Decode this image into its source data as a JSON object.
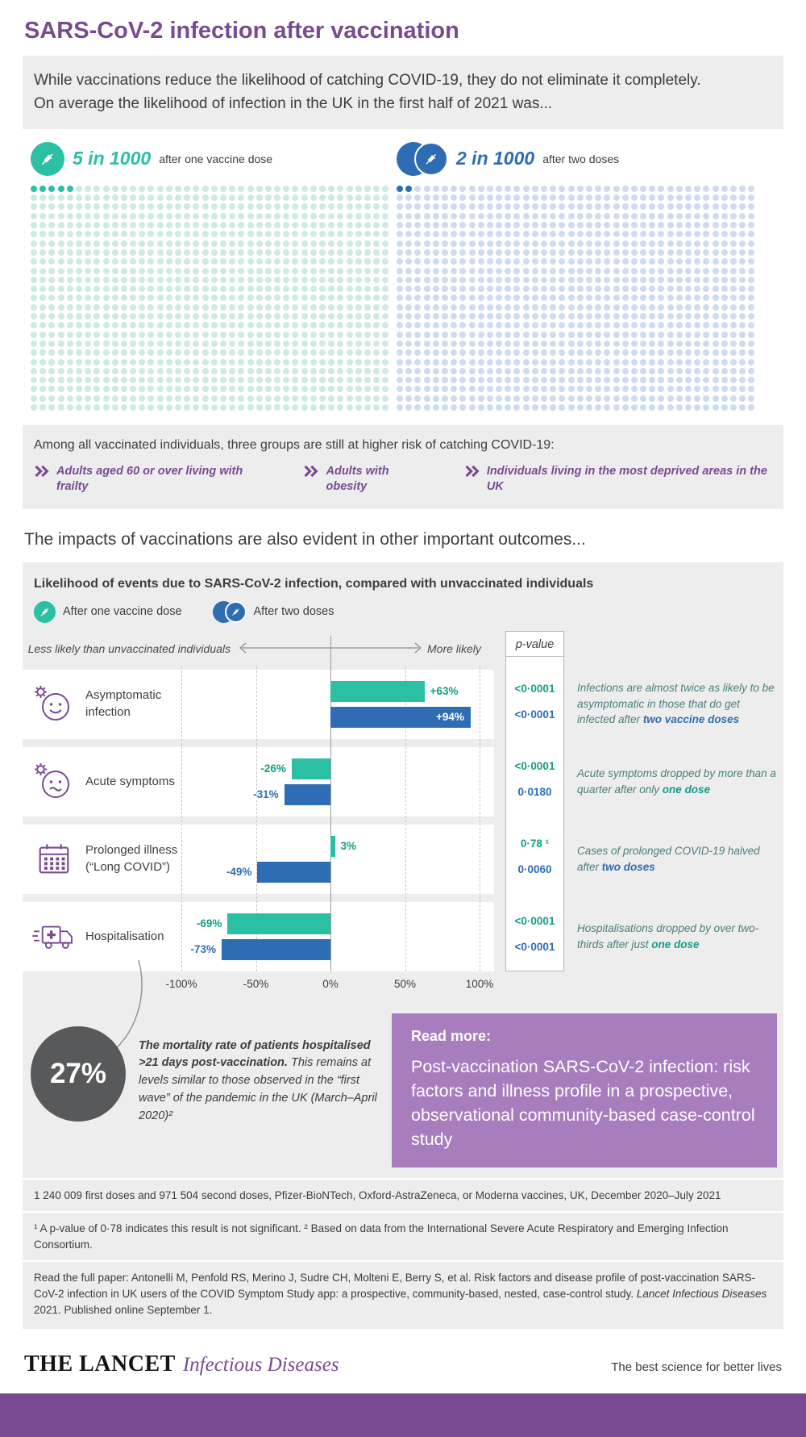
{
  "page": {
    "title": "SARS-CoV-2 infection after vaccination",
    "intro_line1": "While vaccinations reduce the likelihood of catching COVID-19, they do not eliminate it completely.",
    "intro_line2": "On average the likelihood of infection in the UK in the first half of 2021 was..."
  },
  "colors": {
    "purple": "#7a4a91",
    "purple-light": "#a77dbe",
    "teal": "#2bbfa4",
    "teal-dark": "#149e86",
    "teal-light": "#cdeae3",
    "blue": "#2e6db4",
    "blue-light": "#cfdcee",
    "gray-bg": "#ededed",
    "dark": "#3d3d3c",
    "circle-gray": "#58595b"
  },
  "risk_groups": {
    "heading": "Among all vaccinated individuals, three groups are still at higher risk of catching COVID-19:",
    "items": [
      "Adults aged 60 or over living with frailty",
      "Adults with obesity",
      "Individuals living in the most deprived areas in the UK"
    ]
  },
  "impacts_heading": "The impacts of vaccinations are also evident in other important outcomes...",
  "chart_data": [
    {
      "type": "pictogram",
      "unit_total": 1000,
      "series": [
        {
          "name": "after one vaccine dose",
          "value_label": "5 in 1000",
          "highlighted": 5
        },
        {
          "name": "after two doses",
          "value_label": "2 in 1000",
          "highlighted": 2
        }
      ]
    },
    {
      "type": "bar",
      "orientation": "horizontal",
      "title": "Likelihood of events due to SARS-CoV-2 infection, compared with unvaccinated individuals",
      "legend": [
        "After one vaccine dose",
        "After two doses"
      ],
      "less_label": "Less likely than unvaccinated individuals",
      "more_label": "More likely",
      "p_label": "p-value",
      "xlim": [
        -100,
        100
      ],
      "x_ticks": [
        "-100%",
        "-50%",
        "0%",
        "50%",
        "100%"
      ],
      "tick_values": [
        -100,
        -50,
        0,
        50,
        100
      ],
      "rows": [
        {
          "category": "Asymptomatic infection",
          "icon": "smiley-virus-icon",
          "one": {
            "value": 63,
            "label": "+63%",
            "p": "<0·0001",
            "label_inside": false
          },
          "two": {
            "value": 94,
            "label": "+94%",
            "p": "<0·0001",
            "label_inside": true
          },
          "note": {
            "pre": "Infections are almost twice as likely to be asymptomatic in those that do get infected after ",
            "bold": "two vaccine doses",
            "bold_color": "blue"
          }
        },
        {
          "category": "Acute symptoms",
          "icon": "sad-virus-icon",
          "one": {
            "value": -26,
            "label": "-26%",
            "p": "<0·0001",
            "label_inside": false
          },
          "two": {
            "value": -31,
            "label": "-31%",
            "p": "0·0180",
            "label_inside": false
          },
          "note": {
            "pre": "Acute symptoms dropped by more than a quarter after only ",
            "bold": "one dose",
            "bold_color": "teal"
          }
        },
        {
          "category": "Prolonged illness (“Long COVID”)",
          "icon": "calendar-icon",
          "one": {
            "value": 3,
            "label": "3%",
            "p": "0·78 ¹",
            "label_inside": false
          },
          "two": {
            "value": -49,
            "label": "-49%",
            "p": "0·0060",
            "label_inside": false
          },
          "note": {
            "pre": "Cases of prolonged COVID-19 halved after ",
            "bold": "two doses",
            "bold_color": "blue"
          }
        },
        {
          "category": "Hospitalisation",
          "icon": "ambulance-icon",
          "one": {
            "value": -69,
            "label": "-69%",
            "p": "<0·0001",
            "label_inside": false
          },
          "two": {
            "value": -73,
            "label": "-73%",
            "p": "<0·0001",
            "label_inside": false
          },
          "note": {
            "pre": "Hospitalisations dropped by over two-thirds after just ",
            "bold": "one dose",
            "bold_color": "teal"
          }
        }
      ]
    }
  ],
  "mortality": {
    "stat": "27%",
    "lead": "The mortality rate of patients hospitalised >21 days post-vaccination.",
    "rest": " This remains at levels similar to those observed in the “first wave” of the pandemic in the UK (March–April 2020)²"
  },
  "read_more": {
    "label": "Read more:",
    "title": "Post-vaccination SARS-CoV-2 infection: risk factors and illness profile in a prospective, observational community-based case-control study"
  },
  "footnotes": [
    {
      "text": "1 240 009 first doses and 971 504 second doses, Pfizer-BioNTech, Oxford-AstraZeneca, or Moderna vaccines, UK, December 2020–July 2021"
    },
    {
      "text": "¹ A p-value of 0·78 indicates this result is not significant. ² Based on data from the International Severe Acute Respiratory and Emerging Infection Consortium."
    },
    {
      "prefix": "Read the full paper: Antonelli M, Penfold RS, Merino J, Sudre CH, Molteni E, Berry S, et al. Risk factors and disease profile of post-vaccination SARS-CoV-2 infection in UK users of the COVID Symptom Study app: a prospective, community-based, nested, case-control study. ",
      "italic": "Lancet Infectious Diseases",
      "suffix": " 2021. Published online September 1."
    }
  ],
  "footer": {
    "brand": "THE LANCET",
    "brand_sub": "Infectious Diseases",
    "tagline": "The best science for better lives"
  }
}
